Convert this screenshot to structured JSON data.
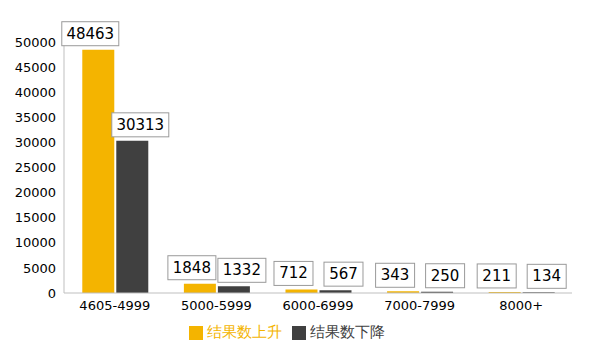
{
  "chart_data": {
    "type": "bar",
    "categories": [
      "4605-4999",
      "5000-5999",
      "6000-6999",
      "7000-7999",
      "8000+"
    ],
    "series": [
      {
        "name": "结果数上升",
        "color": "#f4b400",
        "values": [
          48463,
          1848,
          712,
          343,
          211
        ]
      },
      {
        "name": "结果数下降",
        "color": "#404040",
        "values": [
          30313,
          1332,
          567,
          250,
          134
        ]
      }
    ],
    "ylim": [
      0,
      50000
    ],
    "yticks": [
      0,
      5000,
      10000,
      15000,
      20000,
      25000,
      30000,
      35000,
      40000,
      45000,
      50000
    ],
    "grid": false,
    "legend": "bottom",
    "data_labels": true
  }
}
